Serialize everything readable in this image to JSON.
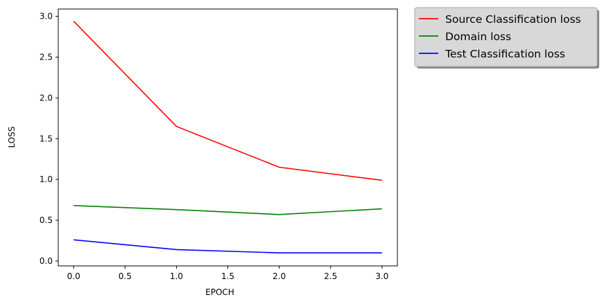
{
  "chart_data": {
    "type": "line",
    "title": "",
    "xlabel": "EPOCH",
    "ylabel": "LOSS",
    "x": [
      0,
      1,
      2,
      3
    ],
    "xlim": [
      -0.15,
      3.15
    ],
    "ylim": [
      -0.06,
      3.09
    ],
    "xticks": [
      0.0,
      0.5,
      1.0,
      1.5,
      2.0,
      2.5,
      3.0
    ],
    "yticks": [
      0.0,
      0.5,
      1.0,
      1.5,
      2.0,
      2.5,
      3.0
    ],
    "xtick_labels": [
      "0.0",
      "0.5",
      "1.0",
      "1.5",
      "2.0",
      "2.5",
      "3.0"
    ],
    "ytick_labels": [
      "0.0",
      "0.5",
      "1.0",
      "1.5",
      "2.0",
      "2.5",
      "3.0"
    ],
    "grid": false,
    "legend_position": "outside-upper-right",
    "series": [
      {
        "name": "Source Classification loss",
        "color": "#ff0000",
        "values": [
          2.94,
          1.65,
          1.15,
          0.99
        ]
      },
      {
        "name": "Domain loss",
        "color": "#008000",
        "values": [
          0.68,
          0.63,
          0.57,
          0.64
        ]
      },
      {
        "name": "Test Classification loss",
        "color": "#0000ff",
        "values": [
          0.26,
          0.14,
          0.1,
          0.1
        ]
      }
    ]
  }
}
